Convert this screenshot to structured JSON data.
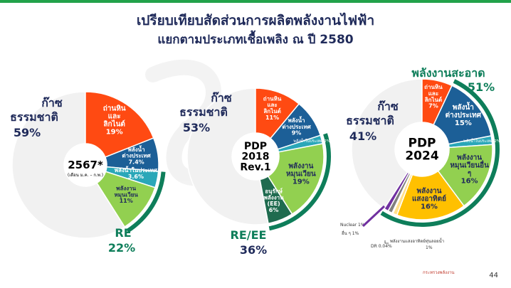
{
  "header": {
    "title": "เปรียบเทียบสัดส่วนการผลิตพลังงานไฟฟ้า",
    "subtitle": "แยกตามประเภทเชื้อเพลิง ณ ปี 2580"
  },
  "page_number": "44",
  "footer": {
    "logo_text": "กระทรวงพลังงาน"
  },
  "colors": {
    "gas": "#f1f1f1",
    "coal": "#ff4a12",
    "import": "#1c5f97",
    "renewable": "#92d050",
    "solar": "#ffc000",
    "nuclear": "#7030a0",
    "other": "#1f6b4f",
    "dr": "#4472c4",
    "cogen": "#157a68",
    "ring": "#0e7e5a",
    "text_dark": "#1f2a5a",
    "text_green": "#0e7e5a"
  },
  "chart_data": [
    {
      "type": "pie",
      "title": "2567*",
      "subtitle": "(เดือน ม.ค. – ก.พ.)",
      "slices": [
        {
          "label": "ก๊าซ ธรรมชาติ",
          "value": 59,
          "value_label": "59%",
          "color": "#f1f1f1"
        },
        {
          "label": "ถ่านหิน และ ลิกไนต์",
          "value": 19,
          "value_label": "19%",
          "color": "#ff4a12"
        },
        {
          "label": "พลังน้ำ ต่างประเทศ",
          "value": 7.4,
          "value_label": "7.4%",
          "color": "#1c5f97"
        },
        {
          "label": "พลังน้ำในประเทศ",
          "value": 3.6,
          "value_label": "3.6%",
          "color": "#2aa7b8"
        },
        {
          "label": "พลังงาน หมุนเวียน",
          "value": 11,
          "value_label": "11%",
          "color": "#92d050"
        }
      ],
      "group": {
        "label": "RE",
        "value_label": "22%"
      }
    },
    {
      "type": "pie",
      "title": "PDP 2018 Rev.1",
      "slices": [
        {
          "label": "ก๊าซ ธรรมชาติ",
          "value": 53,
          "value_label": "53%",
          "color": "#f1f1f1"
        },
        {
          "label": "ถ่านหิน และ ลิกไนต์",
          "value": 11,
          "value_label": "11%",
          "color": "#ff4a12"
        },
        {
          "label": "พลังน้ำ ต่างประเทศ",
          "value": 9,
          "value_label": "9%",
          "color": "#1c5f97"
        },
        {
          "label": "พลังน้ำในประเทศ",
          "value": 2,
          "value_label": "2%",
          "color": "#2aa7b8"
        },
        {
          "label": "พลังงาน หมุนเวียน",
          "value": 19,
          "value_label": "19%",
          "color": "#92d050"
        },
        {
          "label": "อนุรักษ์ พลังงาน (EE)",
          "value": 6,
          "value_label": "6%",
          "color": "#1f6b4f"
        }
      ],
      "group": {
        "label": "RE/EE",
        "value_label": "36%"
      }
    },
    {
      "type": "pie",
      "title": "PDP 2024",
      "slices": [
        {
          "label": "ก๊าซ ธรรมชาติ",
          "value": 41,
          "value_label": "41%",
          "color": "#f1f1f1"
        },
        {
          "label": "ถ่านหิน และ ลิกไนต์",
          "value": 7,
          "value_label": "7%",
          "color": "#ff4a12"
        },
        {
          "label": "พลังน้ำ ต่างประเทศ",
          "value": 15,
          "value_label": "15%",
          "color": "#1c5f97"
        },
        {
          "label": "พลังน้ำในประเทศ",
          "value": 2,
          "value_label": "2%",
          "color": "#2aa7b8"
        },
        {
          "label": "พลังงาน หมุนเวียนอื่น ๆ",
          "value": 16,
          "value_label": "16%",
          "color": "#92d050"
        },
        {
          "label": "พลังงาน แสงอาทิตย์",
          "value": 16,
          "value_label": "16%",
          "color": "#ffc000"
        },
        {
          "label": "พลังงานแสงอาทิตย์ทุ่นลอยน้ำ",
          "value": 1,
          "value_label": "1%",
          "color": "#ffe08a"
        },
        {
          "label": "DR",
          "value": 0.04,
          "value_label": "0.04%",
          "color": "#4472c4"
        },
        {
          "label": "อื่น ๆ",
          "value": 1,
          "value_label": "1%",
          "color": "#7f7f7f"
        },
        {
          "label": "Nuclear",
          "value": 1,
          "value_label": "1%",
          "color": "#7030a0"
        }
      ],
      "group": {
        "label": "พลังงานสะอาด",
        "value_label": "51%"
      }
    }
  ]
}
